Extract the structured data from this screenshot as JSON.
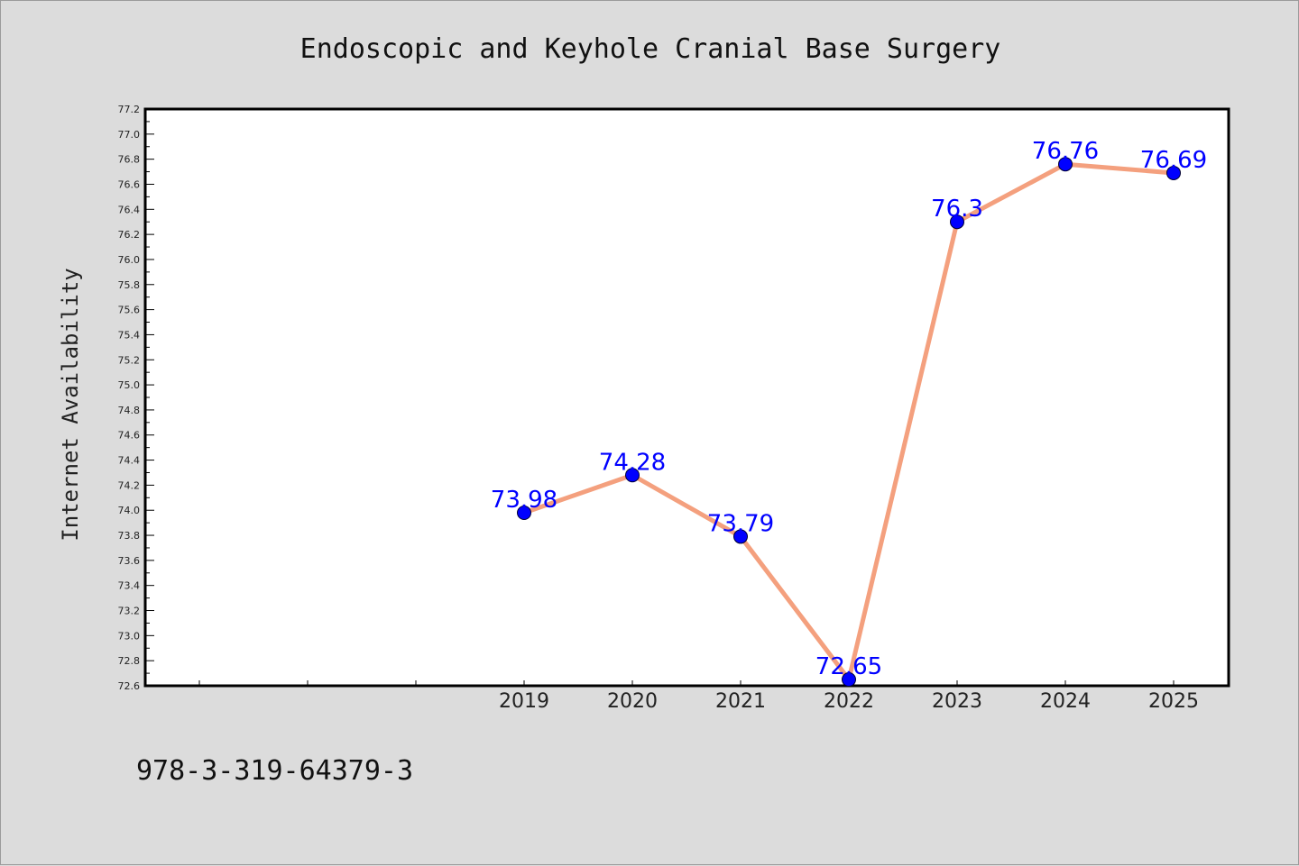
{
  "chart_data": {
    "type": "line",
    "title": "Endoscopic and Keyhole Cranial Base Surgery",
    "ylabel": "Internet Availability",
    "xlabel": "",
    "x": [
      "2019",
      "2020",
      "2021",
      "2022",
      "2023",
      "2024",
      "2025"
    ],
    "values": [
      73.98,
      74.28,
      73.79,
      72.65,
      76.3,
      76.76,
      76.69
    ],
    "data_labels": [
      "73.98",
      "74.28",
      "73.79",
      "72.65",
      "76.3",
      "76.76",
      "76.69"
    ],
    "ylim": [
      72.6,
      77.2
    ],
    "yticks": [
      "72.6",
      "72.8",
      "73.0",
      "73.2",
      "73.4",
      "73.6",
      "73.8",
      "74.0",
      "74.2",
      "74.4",
      "74.6",
      "74.8",
      "75.0",
      "75.2",
      "75.4",
      "75.6",
      "75.8",
      "76.0",
      "76.2",
      "76.4",
      "76.6",
      "76.8",
      "77.0",
      "77.2"
    ],
    "grid": false,
    "legend": "none",
    "colors": {
      "line": "#f4a07e",
      "marker": "#0000ff",
      "label": "#0000ff",
      "background": "#dcdcdc",
      "plot_area": "#ffffff"
    }
  },
  "footer": {
    "isbn": "978-3-319-64379-3"
  }
}
